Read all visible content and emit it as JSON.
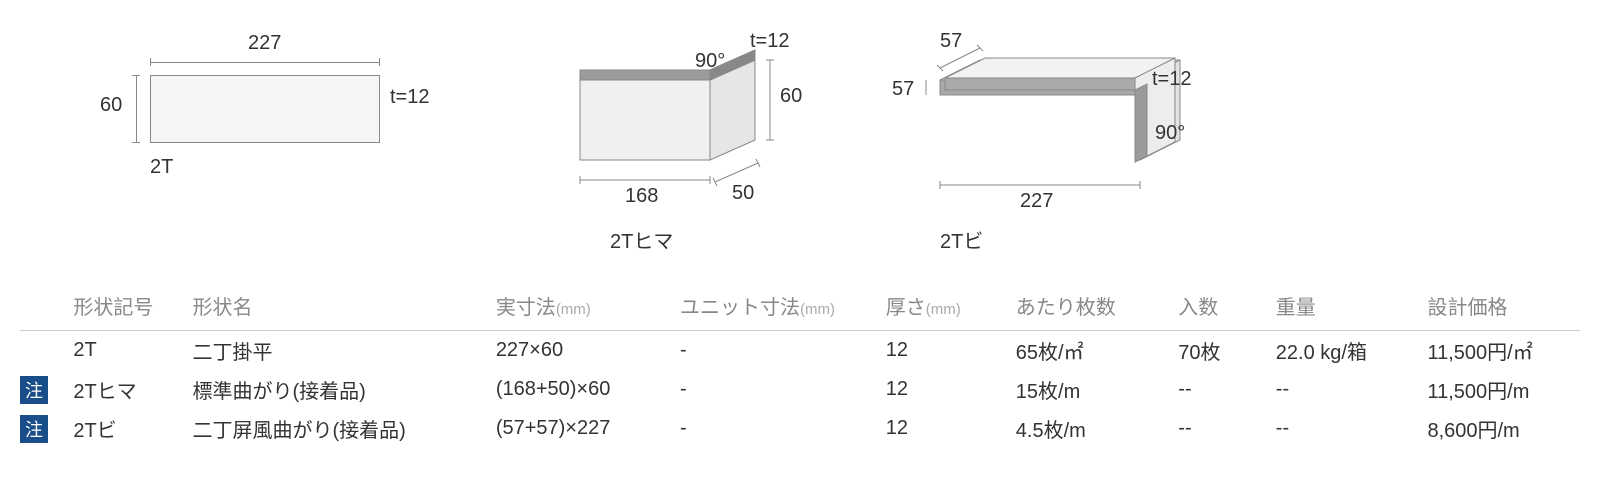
{
  "diagrams": {
    "d1": {
      "label": "2T",
      "width": "227",
      "height": "60",
      "thickness": "t=12",
      "fill": "#f5f5f5",
      "stroke": "#888888"
    },
    "d2": {
      "label": "2Tヒマ",
      "width": "168",
      "short": "50",
      "height": "60",
      "angle": "90°",
      "thickness": "t=12",
      "fill": "#f0f0f0",
      "darkfill": "#999999",
      "stroke": "#888888"
    },
    "d3": {
      "label": "2Tビ",
      "top_w": "57",
      "side_h": "57",
      "length": "227",
      "angle": "90°",
      "thickness": "t=12",
      "fill": "#f0f0f0",
      "darkfill": "#a0a0a0",
      "stroke": "#888888"
    }
  },
  "table": {
    "headers": {
      "code": "形状記号",
      "name": "形状名",
      "actual": "実寸法",
      "actual_unit": "(mm)",
      "unit_dim": "ユニット寸法",
      "unit_dim_unit": "(mm)",
      "thickness": "厚さ",
      "thickness_unit": "(mm)",
      "per": "あたり枚数",
      "qty": "入数",
      "weight": "重量",
      "price": "設計価格"
    },
    "note_label": "注",
    "rows": [
      {
        "note": false,
        "code": "2T",
        "name": "二丁掛平",
        "actual": "227×60",
        "unit_dim": "-",
        "thickness": "12",
        "per": "65枚/㎡",
        "qty": "70枚",
        "weight": "22.0 kg/箱",
        "price": "11,500円/㎡"
      },
      {
        "note": true,
        "code": "2Tヒマ",
        "name": "標準曲がり(接着品)",
        "actual": "(168+50)×60",
        "unit_dim": "-",
        "thickness": "12",
        "per": "15枚/m",
        "qty": "--",
        "weight": "--",
        "price": "11,500円/m"
      },
      {
        "note": true,
        "code": "2Tビ",
        "name": "二丁屏風曲がり(接着品)",
        "actual": "(57+57)×227",
        "unit_dim": "-",
        "thickness": "12",
        "per": "4.5枚/m",
        "qty": "--",
        "weight": "--",
        "price": "8,600円/m"
      }
    ]
  },
  "colors": {
    "text": "#333333",
    "muted": "#888888",
    "badge_bg": "#1a4e8a",
    "badge_fg": "#ffffff",
    "border": "#cccccc"
  }
}
